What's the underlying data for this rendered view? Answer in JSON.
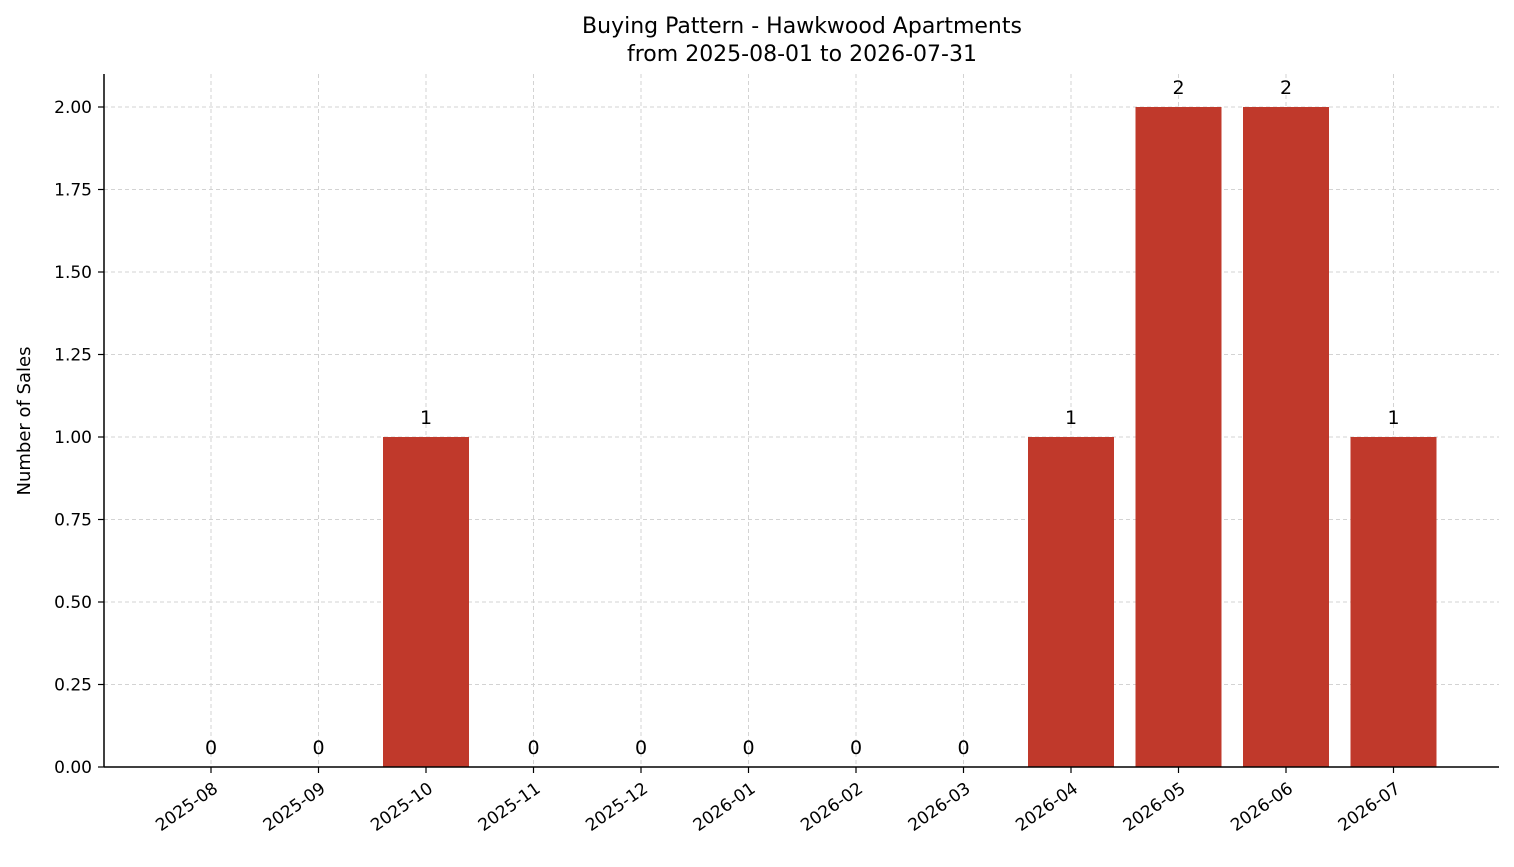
{
  "chart_data": {
    "type": "bar",
    "title_line1": "Buying Pattern - Hawkwood Apartments",
    "title_line2": "from 2025-08-01 to 2026-07-31",
    "xlabel": "",
    "ylabel": "Number of Sales",
    "categories": [
      "2025-08",
      "2025-09",
      "2025-10",
      "2025-11",
      "2025-12",
      "2026-01",
      "2026-02",
      "2026-03",
      "2026-04",
      "2026-05",
      "2026-06",
      "2026-07"
    ],
    "values": [
      0,
      0,
      1,
      0,
      0,
      0,
      0,
      0,
      1,
      2,
      2,
      1
    ],
    "data_labels": [
      "0",
      "0",
      "1",
      "0",
      "0",
      "0",
      "0",
      "0",
      "1",
      "2",
      "2",
      "1"
    ],
    "ylim": [
      0,
      2.1
    ],
    "yticks": [
      0,
      0.25,
      0.5,
      0.75,
      1.0,
      1.25,
      1.5,
      1.75,
      2.0
    ],
    "ytick_labels": [
      "0.00",
      "0.25",
      "0.50",
      "0.75",
      "1.00",
      "1.25",
      "1.50",
      "1.75",
      "2.00"
    ],
    "grid": true,
    "bar_color": "#c0392b"
  }
}
